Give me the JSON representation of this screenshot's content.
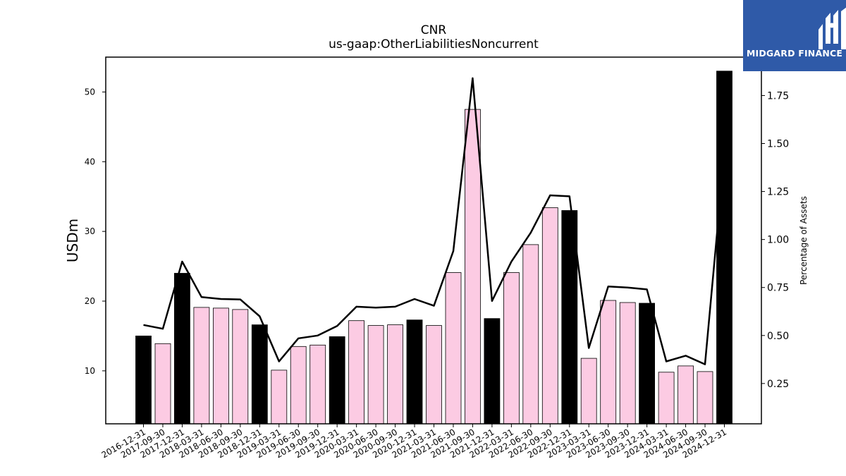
{
  "logo": {
    "text": "MIDGARD FINANCE",
    "color": "#2f5aa8"
  },
  "chart_data": {
    "type": "bar",
    "title": "CNR",
    "subtitle": "us-gaap:OtherLiabilitiesNoncurrent",
    "ylabel": "USDm",
    "y2label": "Percentage of Assets",
    "ylim": [
      2.4,
      55.0
    ],
    "y2lim": [
      0.04,
      1.95
    ],
    "yticks": [
      10,
      20,
      30,
      40,
      50
    ],
    "y2ticks": [
      0.25,
      0.5,
      0.75,
      1.0,
      1.25,
      1.5,
      1.75
    ],
    "y2ticklabels": [
      "0.25",
      "0.50",
      "0.75",
      "1.00",
      "1.25",
      "1.50",
      "1.75"
    ],
    "categories": [
      "2016-12-31",
      "2017-09-30",
      "2017-12-31",
      "2018-03-31",
      "2018-06-30",
      "2018-09-30",
      "2018-12-31",
      "2019-03-31",
      "2019-06-30",
      "2019-09-30",
      "2019-12-31",
      "2020-03-31",
      "2020-06-30",
      "2020-09-30",
      "2020-12-31",
      "2021-03-31",
      "2021-06-30",
      "2021-09-30",
      "2021-12-31",
      "2022-03-31",
      "2022-06-30",
      "2022-09-30",
      "2022-12-31",
      "2023-03-31",
      "2023-06-30",
      "2023-09-30",
      "2023-12-31",
      "2024-03-31",
      "2024-06-30",
      "2024-09-30",
      "2024-12-31"
    ],
    "values": [
      15.0,
      13.9,
      24.0,
      19.1,
      19.0,
      18.8,
      16.6,
      10.1,
      13.5,
      13.7,
      14.9,
      17.2,
      16.5,
      16.6,
      17.3,
      16.5,
      24.1,
      47.5,
      17.5,
      24.1,
      28.1,
      33.4,
      33.0,
      11.8,
      20.1,
      19.8,
      19.7,
      9.8,
      10.7,
      9.9,
      53.0
    ],
    "annual": [
      true,
      false,
      true,
      false,
      false,
      false,
      true,
      false,
      false,
      false,
      true,
      false,
      false,
      false,
      true,
      false,
      false,
      false,
      true,
      false,
      false,
      false,
      true,
      false,
      false,
      false,
      true,
      false,
      false,
      false,
      true
    ],
    "pct_assets": [
      0.555,
      0.535,
      0.885,
      0.7,
      0.69,
      0.688,
      0.6,
      0.365,
      0.485,
      0.5,
      0.55,
      0.65,
      0.645,
      0.65,
      0.69,
      0.655,
      0.94,
      1.84,
      0.68,
      0.885,
      1.035,
      1.23,
      1.225,
      0.435,
      0.755,
      0.75,
      0.74,
      0.365,
      0.395,
      0.35,
      1.45
    ],
    "colors": {
      "annual": "#000000",
      "quarter": "#fccbe3",
      "line": "#000000"
    },
    "grid": false
  }
}
